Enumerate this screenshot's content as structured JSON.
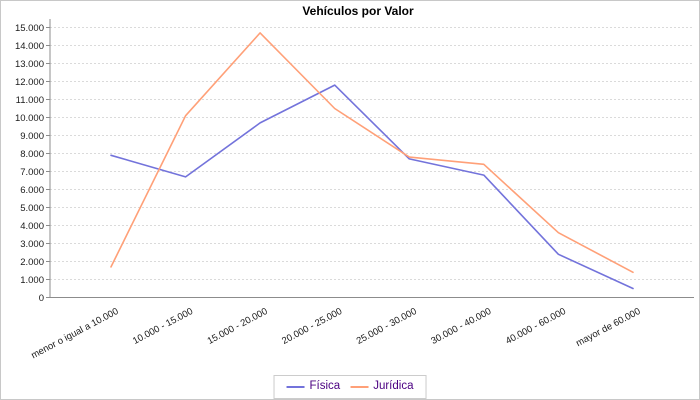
{
  "page": {
    "background": "#ffffff",
    "border_color": "#c8c8c8"
  },
  "chart_data": {
    "type": "line",
    "title": "Vehículos por Valor",
    "categories": [
      "menor o igual a 10.000",
      "10.000 - 15.000",
      "15.000 - 20.000",
      "20.000 - 25.000",
      "25.000 - 30.000",
      "30.000 - 40.000",
      "40.000 - 60.000",
      "mayor de 60.000"
    ],
    "series": [
      {
        "name": "Física",
        "color": "#7373db",
        "values": [
          7900,
          6700,
          9700,
          11800,
          7700,
          6800,
          2400,
          500
        ]
      },
      {
        "name": "Jurídica",
        "color": "#ffa078",
        "values": [
          1700,
          10100,
          14700,
          10500,
          7800,
          7400,
          3600,
          1400
        ]
      }
    ],
    "xlabel": "",
    "ylabel": "",
    "ylim": [
      0,
      15000
    ],
    "ytick_step": 1000,
    "ytick_labels": [
      "0",
      "1.000",
      "2.000",
      "3.000",
      "4.000",
      "5.000",
      "6.000",
      "7.000",
      "8.000",
      "9.000",
      "10.000",
      "11.000",
      "12.000",
      "13.000",
      "14.000",
      "15.000"
    ],
    "grid": "horizontal-dashed",
    "legend_position": "bottom"
  },
  "legend": {
    "items": [
      {
        "label": "Física",
        "color": "#7373db"
      },
      {
        "label": "Jurídica",
        "color": "#ffa078"
      }
    ]
  },
  "styles": {
    "grid_color": "#dadada",
    "axis_color": "#8c8c8c",
    "tick_label_color": "#1a1a1a",
    "legend_text_color": "#4b0082",
    "legend_border_color": "#cccccc"
  }
}
